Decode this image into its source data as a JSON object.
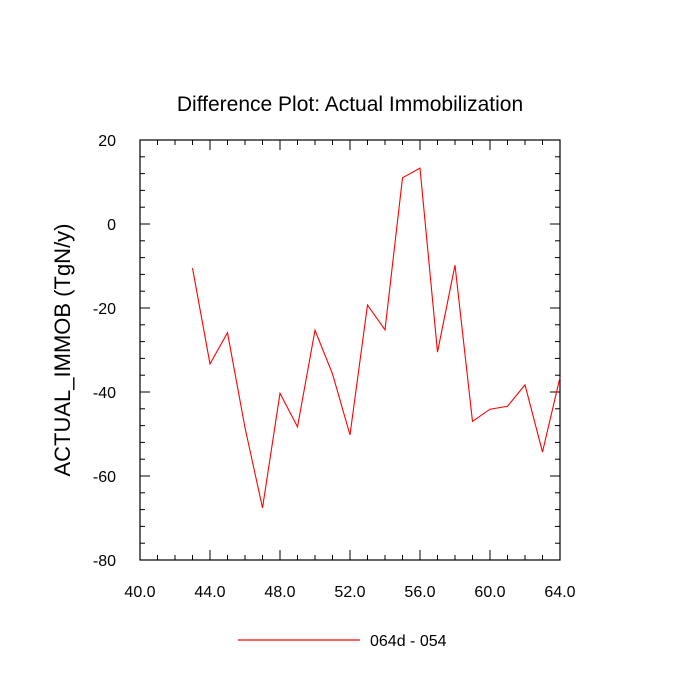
{
  "chart_data": {
    "type": "line",
    "title": "Difference Plot: Actual Immobilization",
    "xlabel": "",
    "ylabel": "ACTUAL_IMMOB  (TgN/y)",
    "xlim": [
      40,
      64
    ],
    "ylim": [
      -80,
      20
    ],
    "x_major_ticks": [
      40,
      44,
      48,
      52,
      56,
      60,
      64
    ],
    "x_tick_labels": [
      "40.0",
      "44.0",
      "48.0",
      "52.0",
      "56.0",
      "60.0",
      "64.0"
    ],
    "y_major_ticks": [
      -80,
      -60,
      -40,
      -20,
      0,
      20
    ],
    "y_tick_labels": [
      "-80",
      "-60",
      "-40",
      "-20",
      "0",
      "20"
    ],
    "grid": false,
    "legend_position": "bottom-center",
    "series": [
      {
        "name": "064d - 054",
        "color": "#ff0000",
        "x": [
          43,
          44,
          45,
          46,
          47,
          48,
          49,
          50,
          51,
          52,
          53,
          54,
          55,
          56,
          57,
          58,
          59,
          60,
          61,
          62,
          63,
          64
        ],
        "y": [
          -10.5,
          -33.3,
          -25.9,
          -48.5,
          -67.6,
          -40.3,
          -48.3,
          -25.3,
          -35.7,
          -50.2,
          -19.3,
          -25.2,
          11.0,
          13.3,
          -30.5,
          -9.8,
          -47.0,
          -44.1,
          -43.4,
          -38.3,
          -54.3,
          -36.5
        ]
      }
    ]
  }
}
